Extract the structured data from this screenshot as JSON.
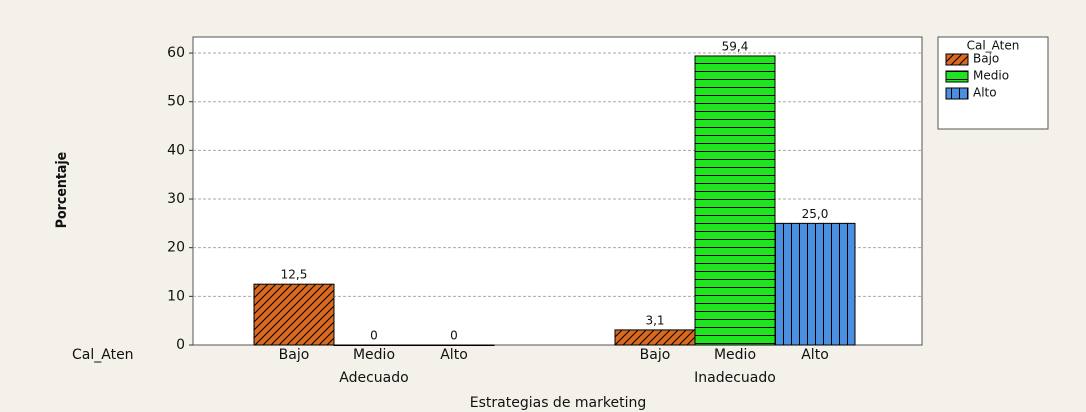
{
  "chart_data": {
    "type": "bar",
    "y_label": "Porcentaje",
    "x_label": "Estrategias de marketing",
    "inner_label": "Cal_Aten",
    "legend_title": "Cal_Aten",
    "categories": [
      "Adecuado",
      "Inadecuado"
    ],
    "series": [
      {
        "name": "Bajo",
        "color": "#d8691f",
        "hatch": "diagonal",
        "values": [
          12.5,
          3.1
        ],
        "value_labels": [
          "12,5",
          "3,1"
        ]
      },
      {
        "name": "Medio",
        "color": "#1fe51f",
        "hatch": "horizontal",
        "values": [
          0,
          59.4
        ],
        "value_labels": [
          "0",
          "59,4"
        ]
      },
      {
        "name": "Alto",
        "color": "#4a8fe0",
        "hatch": "vertical",
        "values": [
          0,
          25.0
        ],
        "value_labels": [
          "0",
          "25,0"
        ]
      }
    ],
    "ylim": [
      0,
      63.3
    ],
    "yticks": [
      0,
      10,
      20,
      30,
      40,
      50,
      60
    ],
    "grid": true,
    "legend": "right"
  }
}
